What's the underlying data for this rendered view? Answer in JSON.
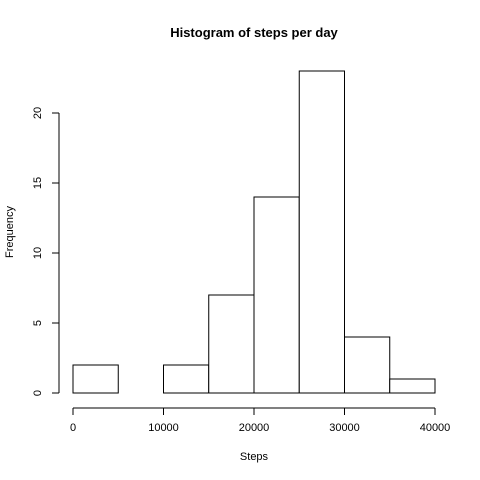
{
  "chart_data": {
    "type": "bar",
    "title": "Histogram of steps per day",
    "xlabel": "Steps",
    "ylabel": "Frequency",
    "bins": [
      {
        "from": 0,
        "to": 5000,
        "count": 2
      },
      {
        "from": 5000,
        "to": 10000,
        "count": 0
      },
      {
        "from": 10000,
        "to": 15000,
        "count": 2
      },
      {
        "from": 15000,
        "to": 20000,
        "count": 7
      },
      {
        "from": 20000,
        "to": 25000,
        "count": 14
      },
      {
        "from": 25000,
        "to": 30000,
        "count": 23
      },
      {
        "from": 30000,
        "to": 35000,
        "count": 4
      },
      {
        "from": 35000,
        "to": 40000,
        "count": 1
      }
    ],
    "xlim": [
      0,
      40000
    ],
    "ylim": [
      0,
      23
    ],
    "xticks": [
      0,
      10000,
      20000,
      30000,
      40000
    ],
    "yticks": [
      0,
      5,
      10,
      15,
      20
    ],
    "grid": false,
    "legend": "none"
  }
}
